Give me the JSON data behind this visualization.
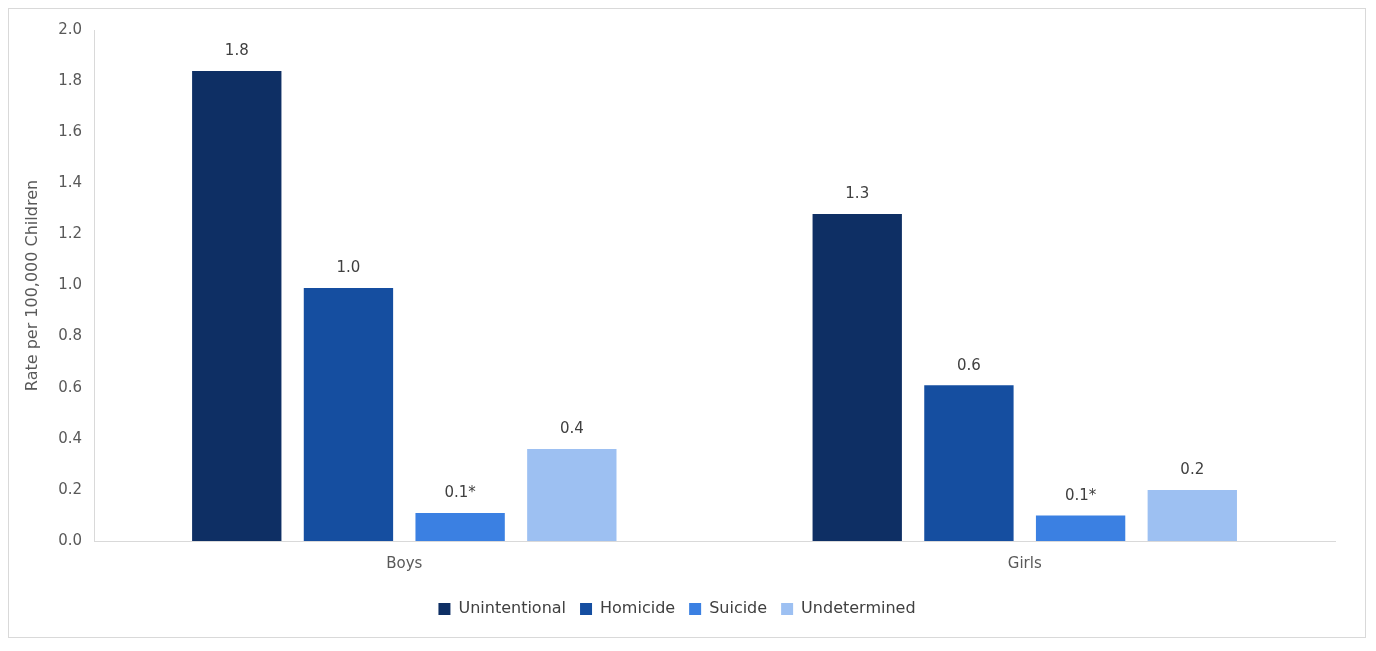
{
  "chart_data": {
    "type": "bar",
    "ylabel": "Rate per 100,000 Children",
    "categories": [
      "Boys",
      "Girls"
    ],
    "series": [
      {
        "name": "Unintentional",
        "color": "#0e2f64",
        "values": [
          1.84,
          1.28
        ],
        "value_labels": [
          "1.8",
          "1.3"
        ]
      },
      {
        "name": "Homicide",
        "color": "#154ea0",
        "values": [
          0.99,
          0.61
        ],
        "value_labels": [
          "1.0",
          "0.6"
        ]
      },
      {
        "name": "Suicide",
        "color": "#3b80e2",
        "values": [
          0.11,
          0.1
        ],
        "value_labels": [
          "0.1*",
          "0.1*"
        ]
      },
      {
        "name": "Undetermined",
        "color": "#9dc0f2",
        "values": [
          0.36,
          0.2
        ],
        "value_labels": [
          "0.4",
          "0.2"
        ]
      }
    ],
    "ylim": [
      0,
      2.0
    ],
    "yticks": [
      {
        "value": 0,
        "label": "0.0"
      },
      {
        "value": 0.2,
        "label": "0.2"
      },
      {
        "value": 0.4,
        "label": "0.4"
      },
      {
        "value": 0.6,
        "label": "0.6"
      },
      {
        "value": 0.8,
        "label": "0.8"
      },
      {
        "value": 1.0,
        "label": "1.0"
      },
      {
        "value": 1.2,
        "label": "1.2"
      },
      {
        "value": 1.4,
        "label": "1.4"
      },
      {
        "value": 1.6,
        "label": "1.6"
      },
      {
        "value": 1.8,
        "label": "1.8"
      },
      {
        "value": 2.0,
        "label": "2.0"
      }
    ],
    "grid": false,
    "legend": "bottom"
  }
}
